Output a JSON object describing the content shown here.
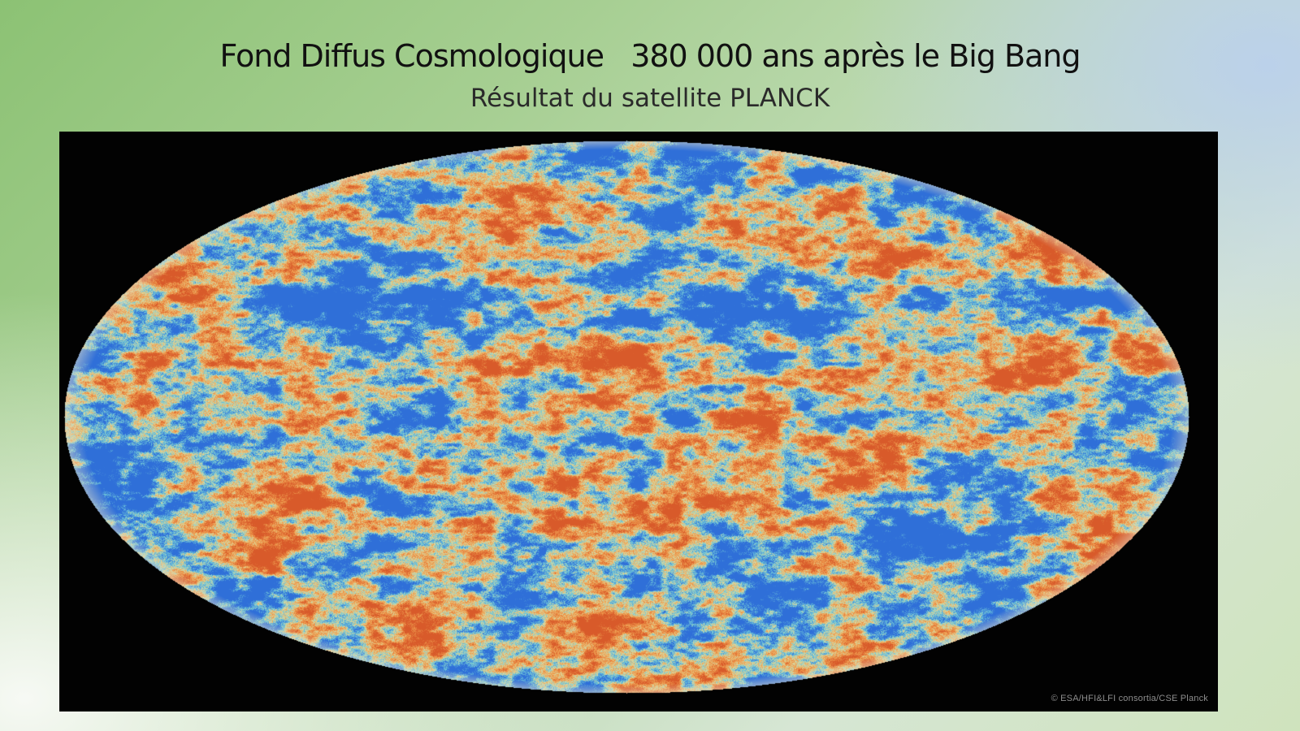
{
  "slide": {
    "title": "Fond Diffus Cosmologique   380 000 ans après le Big Bang",
    "subtitle": "Résultat du satellite PLANCK"
  },
  "image": {
    "description_icon": "cmb-sky-map",
    "credit": "© ESA/HFI&LFI consortia/CSE Planck"
  },
  "colors": {
    "background_green": "#a7cf93",
    "background_blue": "#bad0ec",
    "map_frame": "#020202",
    "map_blue": "#2f6fd8",
    "map_cyan": "#6ec6d8",
    "map_orange": "#f0a050",
    "map_red": "#d85a2a",
    "map_pale": "#d8d8a0"
  }
}
